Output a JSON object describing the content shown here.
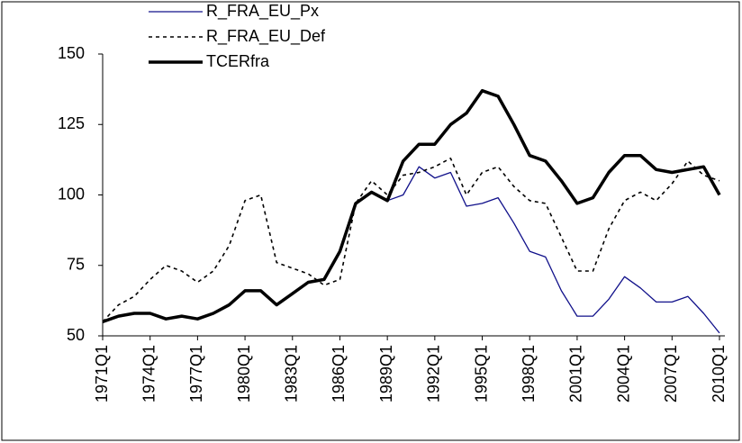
{
  "chart_data": {
    "type": "line",
    "categories": [
      "1971Q1",
      null,
      null,
      "1974Q1",
      null,
      null,
      "1977Q1",
      null,
      null,
      "1980Q1",
      null,
      null,
      "1983Q1",
      null,
      null,
      "1986Q1",
      null,
      null,
      "1989Q1",
      null,
      null,
      "1992Q1",
      null,
      null,
      "1995Q1",
      null,
      null,
      "1998Q1",
      null,
      null,
      "2001Q1",
      null,
      null,
      "2004Q1",
      null,
      null,
      "2007Q1",
      null,
      null,
      "2010Q1"
    ],
    "series": [
      {
        "name": "R_FRA_EU_Px",
        "color": "#10108a",
        "width": 1.3,
        "dashed": false,
        "values": [
          55,
          57,
          58,
          58,
          56,
          57,
          56,
          58,
          61,
          66,
          66,
          61,
          65,
          69,
          70,
          80,
          97,
          101,
          98,
          100,
          110,
          106,
          108,
          96,
          97,
          99,
          90,
          80,
          78,
          66,
          57,
          57,
          63,
          71,
          67,
          62,
          62,
          64,
          58,
          51
        ]
      },
      {
        "name": "R_FRA_EU_Def",
        "color": "#000000",
        "width": 1.6,
        "dashed": true,
        "values": [
          55,
          61,
          64,
          70,
          75,
          73,
          69,
          73,
          82,
          98,
          100,
          76,
          74,
          72,
          68,
          70,
          97,
          105,
          100,
          107,
          108,
          110,
          113,
          100,
          108,
          110,
          103,
          98,
          97,
          85,
          73,
          73,
          88,
          98,
          101,
          98,
          104,
          112,
          107,
          105
        ]
      },
      {
        "name": "TCERfra",
        "color": "#000000",
        "width": 3.5,
        "dashed": false,
        "values": [
          55,
          57,
          58,
          58,
          56,
          57,
          56,
          58,
          61,
          66,
          66,
          61,
          65,
          69,
          70,
          80,
          97,
          101,
          98,
          112,
          118,
          118,
          125,
          129,
          137,
          135,
          125,
          114,
          112,
          105,
          97,
          99,
          108,
          114,
          114,
          109,
          108,
          109,
          110,
          100
        ]
      }
    ],
    "ylim": [
      50,
      150
    ],
    "yticks": [
      50,
      75,
      100,
      125,
      150
    ],
    "legend": "upper-left"
  }
}
